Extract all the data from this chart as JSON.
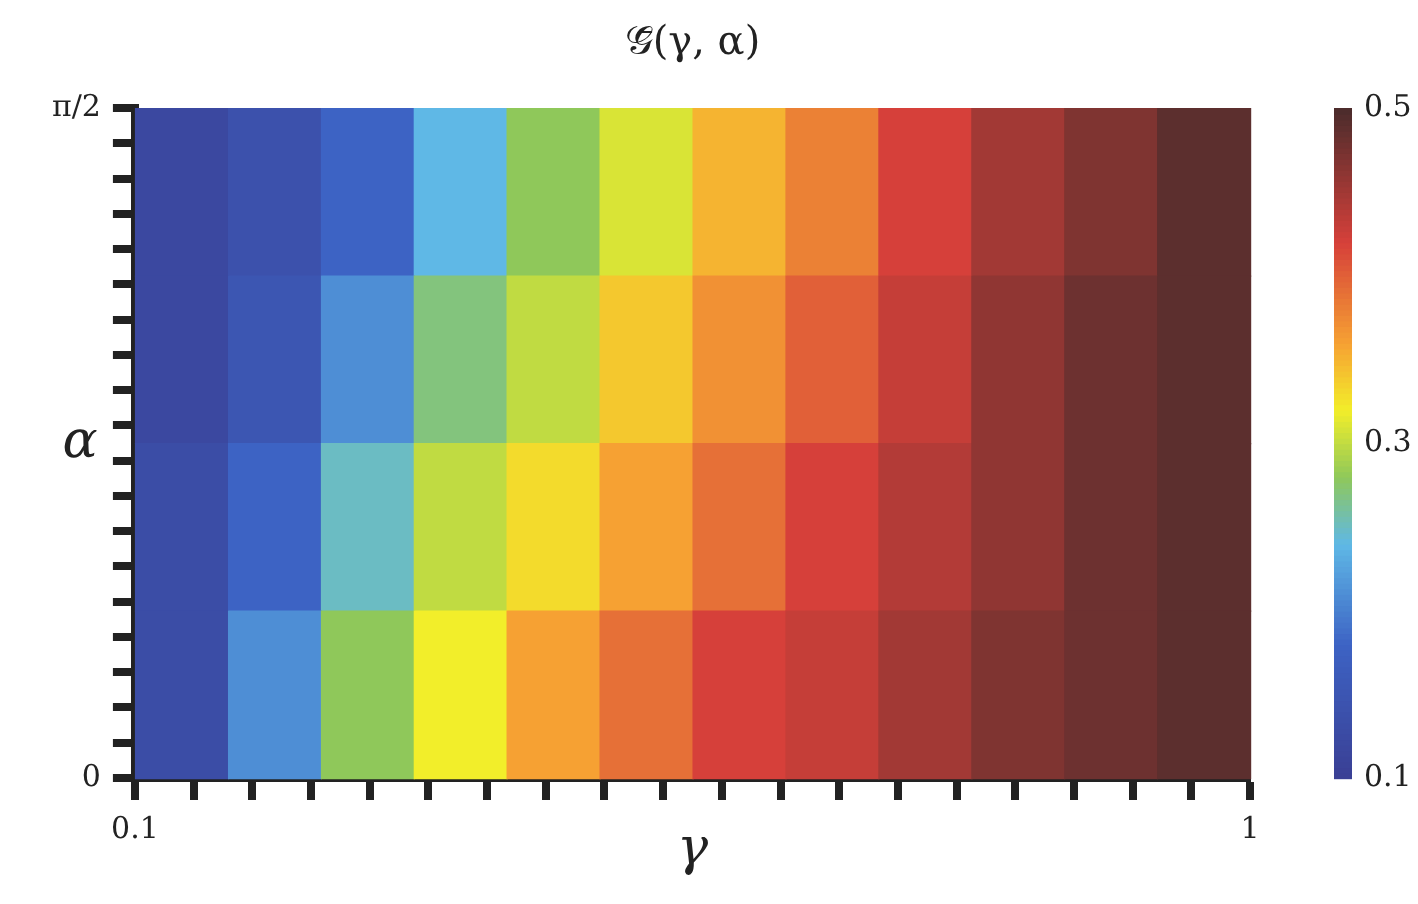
{
  "chart_data": {
    "type": "heatmap",
    "title": "𝒢̄(γ, α)",
    "xlabel": "γ",
    "ylabel": "α",
    "x": [
      0.1101,
      0.1334,
      0.1616,
      0.1957,
      0.2371,
      0.2873,
      0.3481,
      0.4217,
      0.5109,
      0.619,
      0.7499,
      0.9085
    ],
    "cells": [
      [
        0.12,
        0.14,
        0.18,
        0.24,
        0.28,
        0.31,
        0.35,
        0.38,
        0.42,
        0.45,
        0.47,
        0.49
      ],
      [
        0.12,
        0.15,
        0.21,
        0.27,
        0.3,
        0.34,
        0.37,
        0.4,
        0.43,
        0.46,
        0.48,
        0.49
      ],
      [
        0.13,
        0.18,
        0.25,
        0.3,
        0.33,
        0.36,
        0.39,
        0.42,
        0.44,
        0.46,
        0.48,
        0.49
      ],
      [
        0.13,
        0.21,
        0.28,
        0.32,
        0.36,
        0.39,
        0.42,
        0.43,
        0.45,
        0.47,
        0.48,
        0.49
      ]
    ],
    "log": "x",
    "xlim": [
      0.1,
      1
    ],
    "xticks": [
      0.1,
      {
        "value": 0.1129,
        "label": null
      },
      {
        "value": 0.1274,
        "label": null
      },
      {
        "value": 0.1438,
        "label": null
      },
      {
        "value": 0.1624,
        "label": null
      },
      {
        "value": 0.1833,
        "label": null
      },
      {
        "value": 0.2069,
        "label": null
      },
      {
        "value": 0.2336,
        "label": null
      },
      {
        "value": 0.2637,
        "label": null
      },
      {
        "value": 0.2976,
        "label": null
      },
      {
        "value": 0.336,
        "label": null
      },
      {
        "value": 0.3793,
        "label": null
      },
      {
        "value": 0.4281,
        "label": null
      },
      {
        "value": 0.4833,
        "label": null
      },
      {
        "value": 0.5456,
        "label": null
      },
      {
        "value": 0.6158,
        "label": null
      },
      {
        "value": 0.6952,
        "label": null
      },
      {
        "value": 0.7848,
        "label": null
      },
      {
        "value": 0.8859,
        "label": null
      },
      1
    ],
    "ylim": [
      0,
      1.5708
    ],
    "yticks": [
      0,
      {
        "value": 0.0827,
        "label": null
      },
      {
        "value": 0.1653,
        "label": null
      },
      {
        "value": 0.248,
        "label": null
      },
      {
        "value": 0.3307,
        "label": null
      },
      {
        "value": 0.4134,
        "label": null
      },
      {
        "value": 0.496,
        "label": null
      },
      {
        "value": 0.5787,
        "label": null
      },
      {
        "value": 0.6614,
        "label": null
      },
      {
        "value": 0.744,
        "label": null
      },
      {
        "value": 0.8267,
        "label": null
      },
      {
        "value": 0.9094,
        "label": null
      },
      {
        "value": 0.9921,
        "label": null
      },
      {
        "value": 1.0747,
        "label": null
      },
      {
        "value": 1.1574,
        "label": null
      },
      {
        "value": 1.2401,
        "label": null
      },
      {
        "value": 1.3228,
        "label": null
      },
      {
        "value": 1.4054,
        "label": null
      },
      {
        "value": 1.4881,
        "label": null
      },
      {
        "value": 1.5708,
        "label": "π/2"
      }
    ],
    "clim": [
      0.1,
      0.5
    ],
    "cticks": [
      0.1,
      0.3,
      0.5
    ]
  }
}
